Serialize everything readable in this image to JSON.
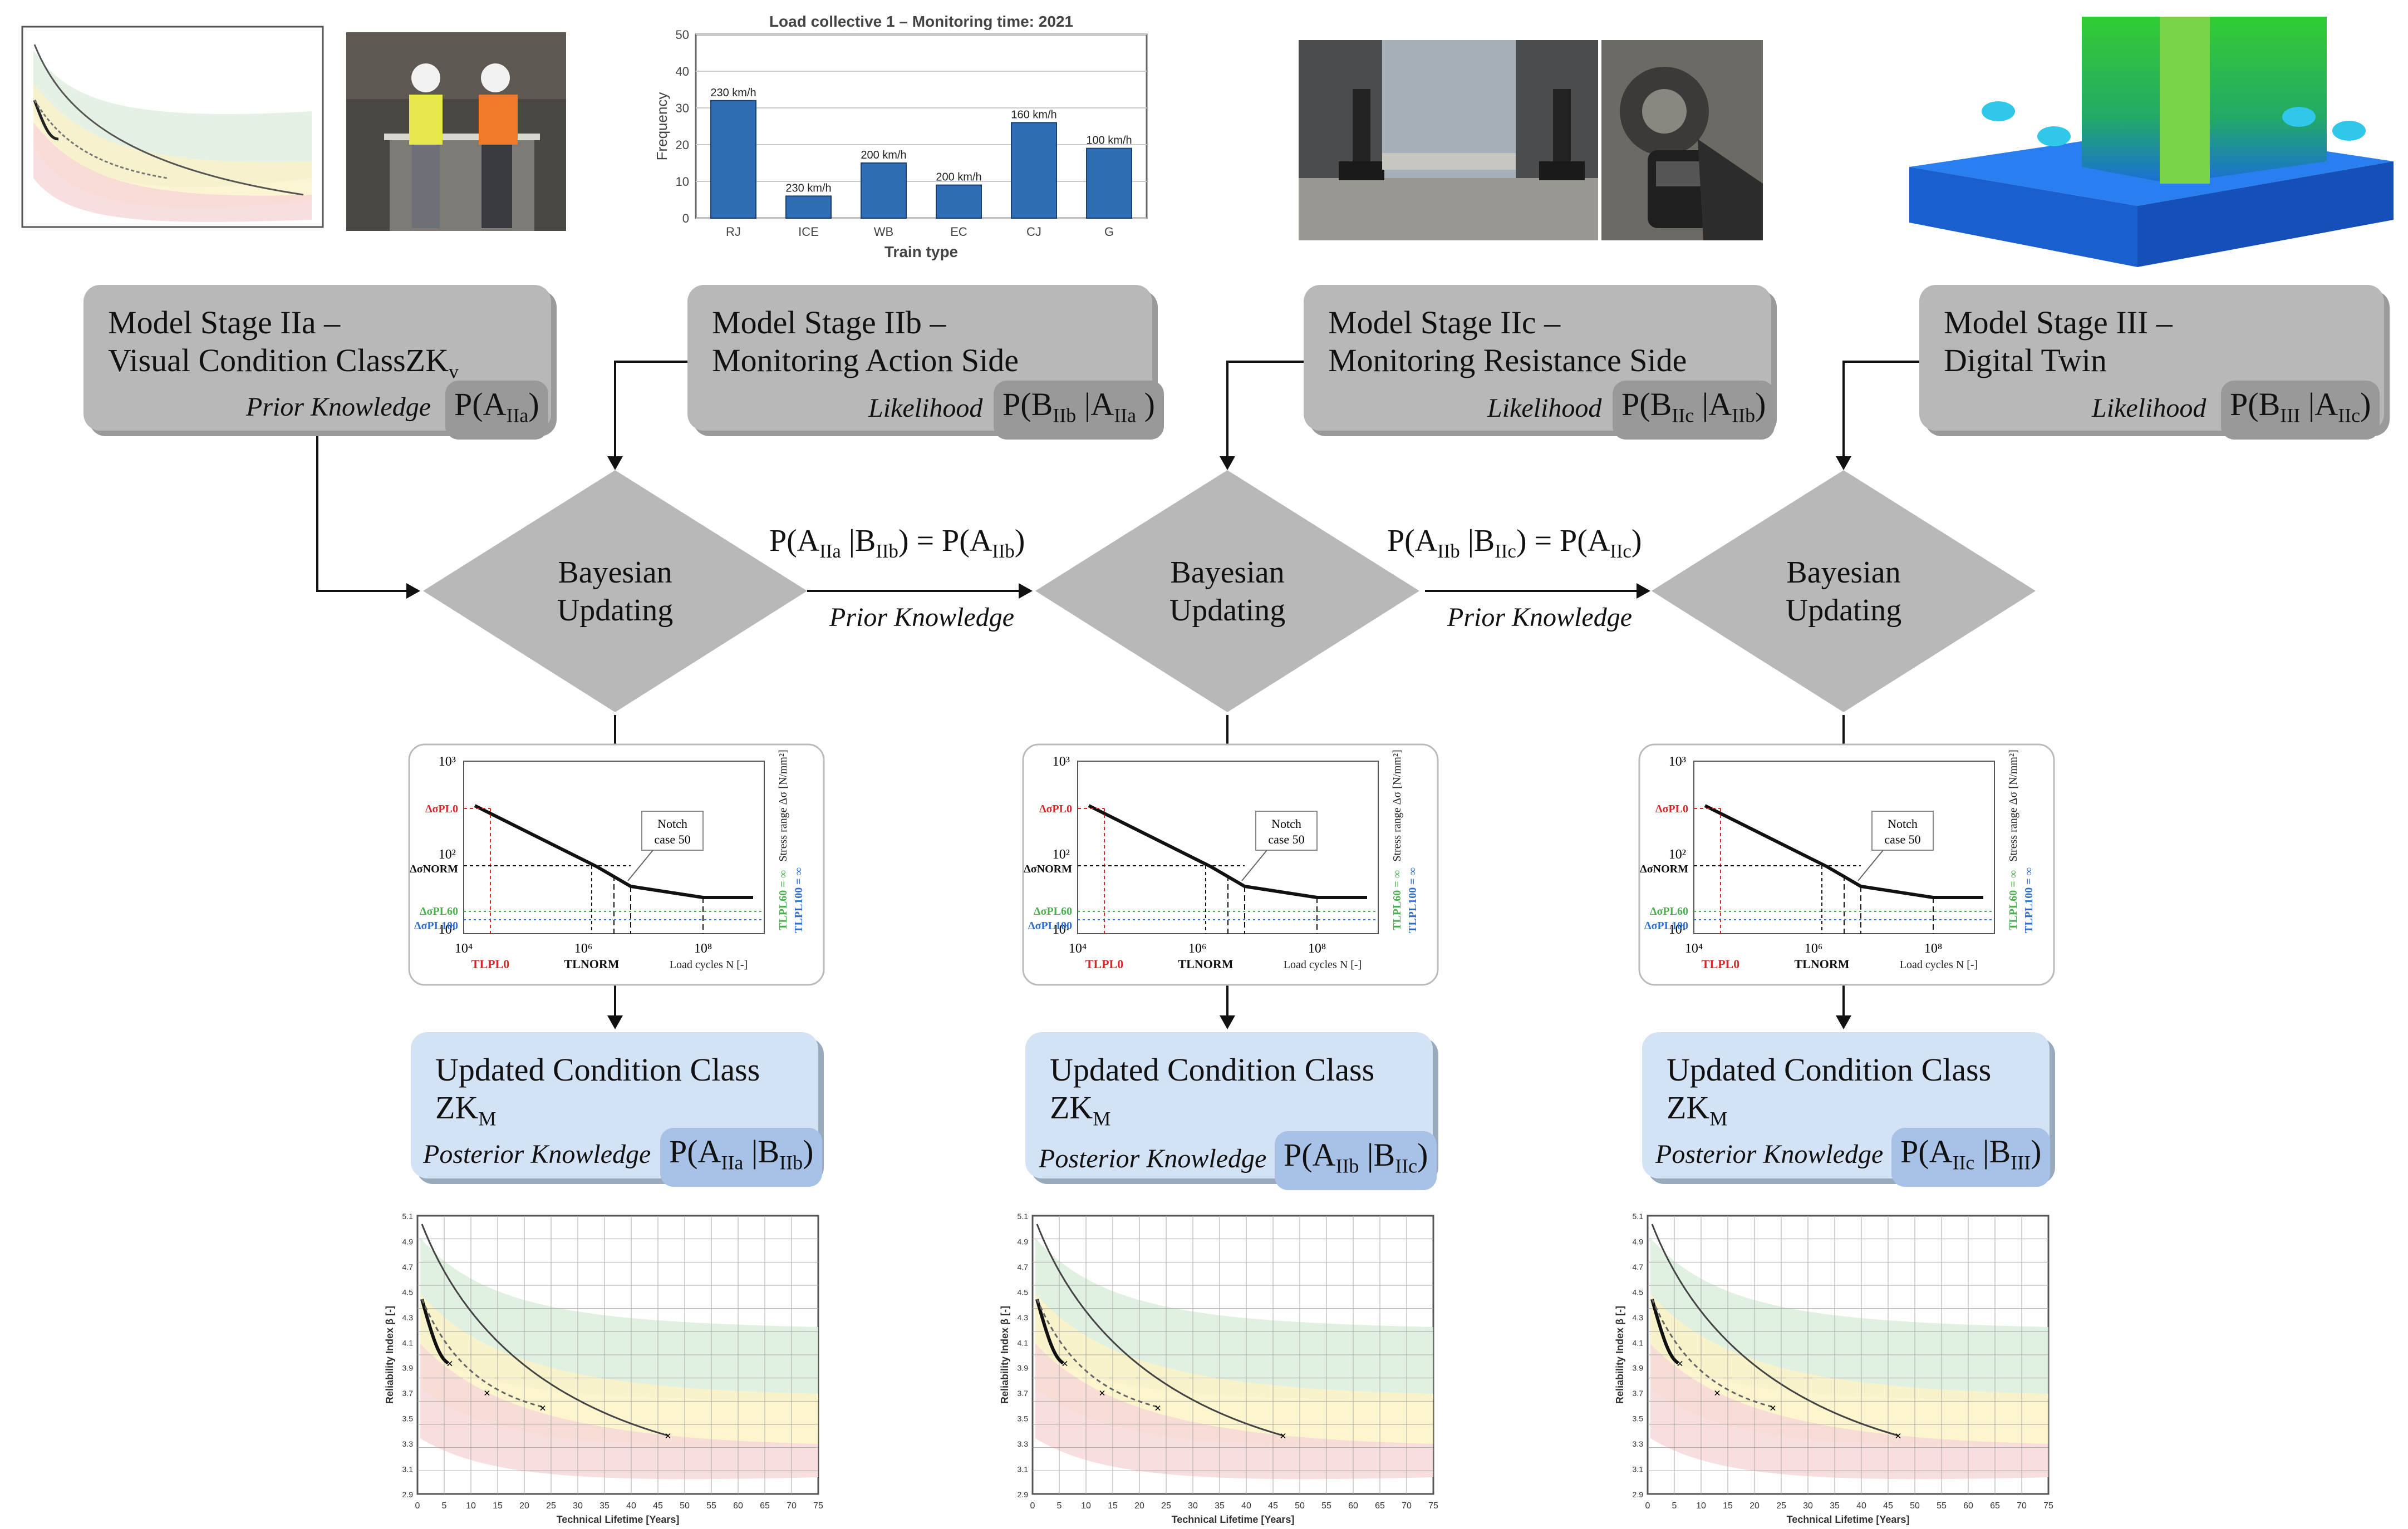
{
  "top_images": {
    "photo_workers": "inspection-photo",
    "load_collective": {
      "title": "Load collective 1 – Monitoring time: 2021",
      "xlabel": "Train type",
      "ylabel": "Frequency",
      "yticks": [
        "0",
        "10",
        "20",
        "30",
        "40",
        "50"
      ],
      "categories": [
        "RJ",
        "ICE",
        "WB",
        "EC",
        "CJ",
        "G"
      ],
      "values": [
        32,
        6,
        15,
        9,
        26,
        19
      ],
      "labels": [
        "230 km/h",
        "230 km/h",
        "200 km/h",
        "200 km/h",
        "160 km/h",
        "100 km/h"
      ]
    },
    "photo_bolts": "bolt-detail-photo",
    "photo_device": "measurement-device-photo",
    "digital_twin_render": "fem-model-render"
  },
  "stages": [
    {
      "title1": "Model Stage IIa –",
      "title2_main": "Visual Condition ClassZK",
      "title2_sub": "v",
      "kind": "Prior Knowledge",
      "prob": "P(A",
      "prob_sub": "IIa",
      "prob_tail": ")"
    },
    {
      "title1": "Model Stage IIb –",
      "title2_main": "Monitoring Action Side",
      "title2_sub": "",
      "kind": "Likelihood",
      "prob": "P(B",
      "prob_sub": "IIb",
      "prob_mid": " |A",
      "prob_sub2": "IIa",
      "prob_tail": " )"
    },
    {
      "title1": "Model Stage IIc –",
      "title2_main": "Monitoring Resistance Side",
      "title2_sub": "",
      "kind": "Likelihood",
      "prob": "P(B",
      "prob_sub": "IIc",
      "prob_mid": " |A",
      "prob_sub2": "IIb",
      "prob_tail": ")"
    },
    {
      "title1": "Model Stage III –",
      "title2_main": "Digital Twin",
      "title2_sub": "",
      "kind": "Likelihood",
      "prob": "P(B",
      "prob_sub": "III",
      "prob_mid": " |A",
      "prob_sub2": "IIc",
      "prob_tail": ")"
    }
  ],
  "bayes": [
    "Bayesian",
    "Updating"
  ],
  "links": [
    {
      "eq_a": "P(A",
      "eq_a_sub": "IIa",
      "eq_b": " |B",
      "eq_b_sub": "IIb",
      "eq_c": ") = P(A",
      "eq_c_sub": "IIb",
      "eq_d": ")",
      "label": "Prior Knowledge"
    },
    {
      "eq_a": "P(A",
      "eq_a_sub": "IIb",
      "eq_b": " |B",
      "eq_b_sub": "IIc",
      "eq_c": ") = P(A",
      "eq_c_sub": "IIc",
      "eq_d": ")",
      "label": "Prior Knowledge"
    }
  ],
  "sn_curve": {
    "y_top": "10³",
    "y_mid": "10²",
    "y_bot": "10¹",
    "x1": "10⁴",
    "x2": "10⁶",
    "x3": "10⁸",
    "xlabel": "Load cycles N [-]",
    "ylabel": "Stress range Δσ [N/mm²]",
    "notch": [
      "Notch",
      "case 50"
    ],
    "s_pl0": "ΔσPL0",
    "s_norm": "ΔσNORM",
    "s_pl60": "ΔσPL60",
    "s_pl100": "ΔσPL100",
    "tl_pl0": "TLPL0",
    "tl_norm": "TLNORM",
    "tl_pl60": "TLPL60 = ∞",
    "tl_pl100": "TLPL100 = ∞"
  },
  "updated": [
    {
      "title": "Updated Condition Class",
      "zk": "ZK",
      "zk_sub": "M",
      "kind": "Posterior Knowledge",
      "p1": "P(A",
      "p1_sub": "IIa",
      "p2": " |B",
      "p2_sub": "IIb",
      "p3": ")"
    },
    {
      "title": "Updated Condition Class",
      "zk": "ZK",
      "zk_sub": "M",
      "kind": "Posterior Knowledge",
      "p1": "P(A",
      "p1_sub": "IIb",
      "p2": " |B",
      "p2_sub": "IIc",
      "p3": ")"
    },
    {
      "title": "Updated Condition Class",
      "zk": "ZK",
      "zk_sub": "M",
      "kind": "Posterior Knowledge",
      "p1": "P(A",
      "p1_sub": "IIc",
      "p2": " |B",
      "p2_sub": "III",
      "p3": ")"
    }
  ],
  "reliability_plot": {
    "xlabel": "Technical Lifetime [Years]",
    "ylabel": "Reliability Index β [-]",
    "xticks": [
      "0",
      "5",
      "10",
      "15",
      "20",
      "25",
      "30",
      "35",
      "40",
      "45",
      "50",
      "55",
      "60",
      "65",
      "70",
      "75"
    ],
    "yticks": [
      "5.1",
      "4.9",
      "4.7",
      "4.5",
      "4.3",
      "4.1",
      "3.9",
      "3.7",
      "3.5",
      "3.3",
      "3.1",
      "2.9"
    ]
  },
  "colors": {
    "gray_box": "#b8b8b8",
    "pill_gray": "#999999",
    "blue_box": "#d3e2f4",
    "pill_blue": "#a7c2e6",
    "bar": "#2e6db4",
    "pl0": "#d62828",
    "pl60": "#4caf50",
    "pl100": "#2f6fd1"
  }
}
